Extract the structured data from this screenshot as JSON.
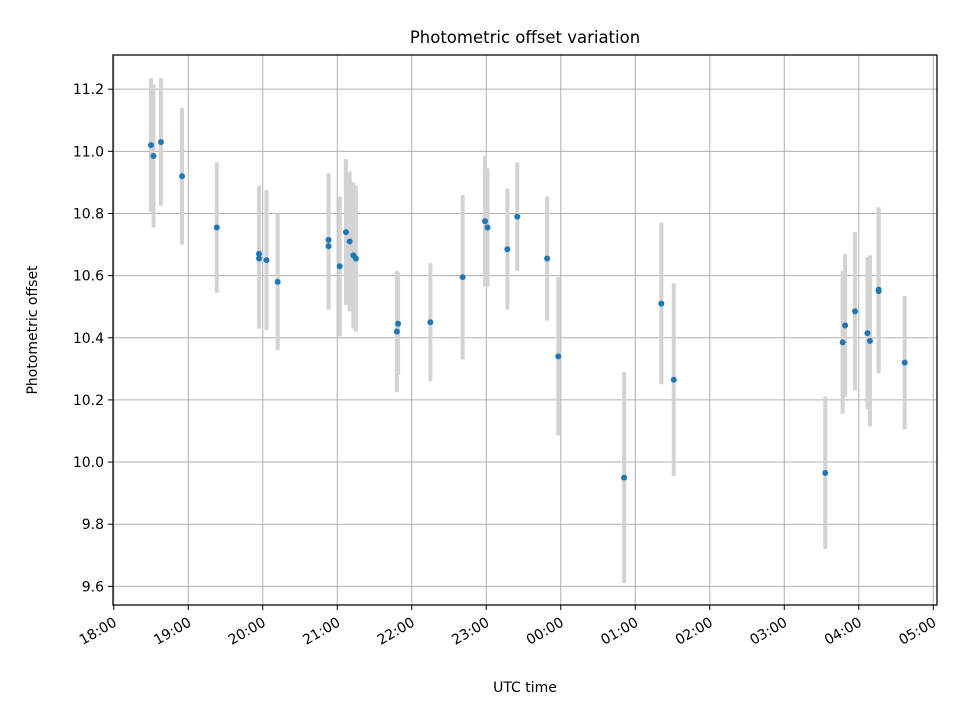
{
  "chart_data": {
    "type": "scatter",
    "title": "Photometric offset variation",
    "xlabel": "UTC time",
    "ylabel": "Photometric offset",
    "grid": true,
    "x_ticks": [
      "18:00",
      "19:00",
      "20:00",
      "21:00",
      "22:00",
      "23:00",
      "00:00",
      "01:00",
      "02:00",
      "03:00",
      "04:00",
      "05:00"
    ],
    "y_ticks": [
      "9.6",
      "9.8",
      "10.0",
      "10.2",
      "10.4",
      "10.6",
      "10.8",
      "11.0",
      "11.2"
    ],
    "ylim": [
      9.54,
      11.31
    ],
    "xlim_hours_after_18": [
      -0.01,
      11.05
    ],
    "colors": {
      "point": "#1f77b4",
      "errorbar": "#d3d3d3",
      "grid": "#b0b0b0"
    },
    "series": [
      {
        "x": [
          "18:30",
          "18:32",
          "18:38",
          "18:55",
          "19:23",
          "19:57",
          "19:57",
          "20:03",
          "20:12",
          "20:53",
          "20:53",
          "21:02",
          "21:07",
          "21:10",
          "21:13",
          "21:15",
          "21:48",
          "21:49",
          "22:15",
          "22:41",
          "22:59",
          "23:01",
          "23:17",
          "23:25",
          "23:49",
          "23:58",
          "00:51",
          "01:21",
          "01:31",
          "03:33",
          "03:47",
          "03:49",
          "03:57",
          "04:07",
          "04:09",
          "04:16",
          "04:16",
          "04:37"
        ],
        "y": [
          11.02,
          10.985,
          11.03,
          10.92,
          10.755,
          10.67,
          10.655,
          10.65,
          10.58,
          10.715,
          10.695,
          10.63,
          10.74,
          10.71,
          10.665,
          10.655,
          10.42,
          10.445,
          10.45,
          10.595,
          10.775,
          10.755,
          10.685,
          10.79,
          10.655,
          10.34,
          9.95,
          10.51,
          10.265,
          9.965,
          10.385,
          10.44,
          10.485,
          10.415,
          10.39,
          10.555,
          10.55,
          10.32
        ],
        "yerr": [
          0.215,
          0.23,
          0.205,
          0.22,
          0.21,
          0.22,
          0.225,
          0.225,
          0.22,
          0.215,
          0.205,
          0.225,
          0.235,
          0.225,
          0.235,
          0.235,
          0.195,
          0.165,
          0.19,
          0.265,
          0.21,
          0.19,
          0.195,
          0.175,
          0.2,
          0.255,
          0.34,
          0.26,
          0.31,
          0.245,
          0.23,
          0.23,
          0.255,
          0.245,
          0.275,
          0.265,
          0.265,
          0.215
        ]
      }
    ]
  }
}
